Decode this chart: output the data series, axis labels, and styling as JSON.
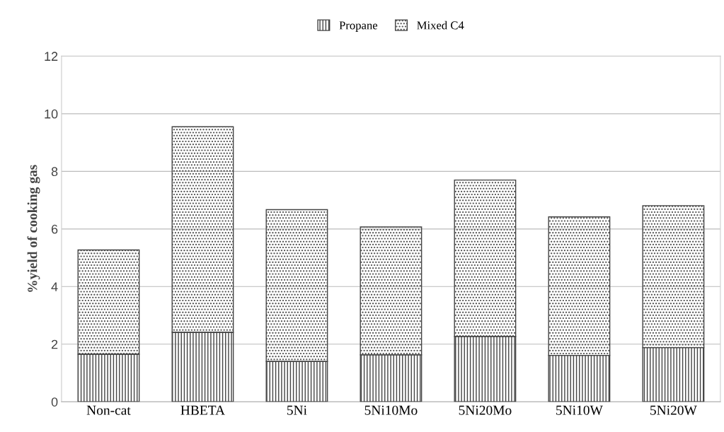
{
  "chart_data": {
    "type": "bar",
    "stacked": true,
    "ylabel": "%yield of cooking gas",
    "categories": [
      "Non-cat",
      "HBETA",
      "5Ni",
      "5Ni10Mo",
      "5Ni20Mo",
      "5Ni10W",
      "5Ni20W"
    ],
    "series": [
      {
        "name": "Propane",
        "color": "#444444",
        "values": [
          1.65,
          2.41,
          1.4,
          1.63,
          2.27,
          1.61,
          1.88
        ]
      },
      {
        "name": "Mixed C4",
        "color": "#444444",
        "values": [
          3.62,
          7.14,
          5.27,
          4.44,
          5.43,
          4.81,
          4.93
        ]
      }
    ],
    "ylim": [
      0,
      12
    ],
    "yticks": [
      0,
      2,
      4,
      6,
      8,
      10,
      12
    ],
    "grid": "y",
    "legend": "top"
  }
}
